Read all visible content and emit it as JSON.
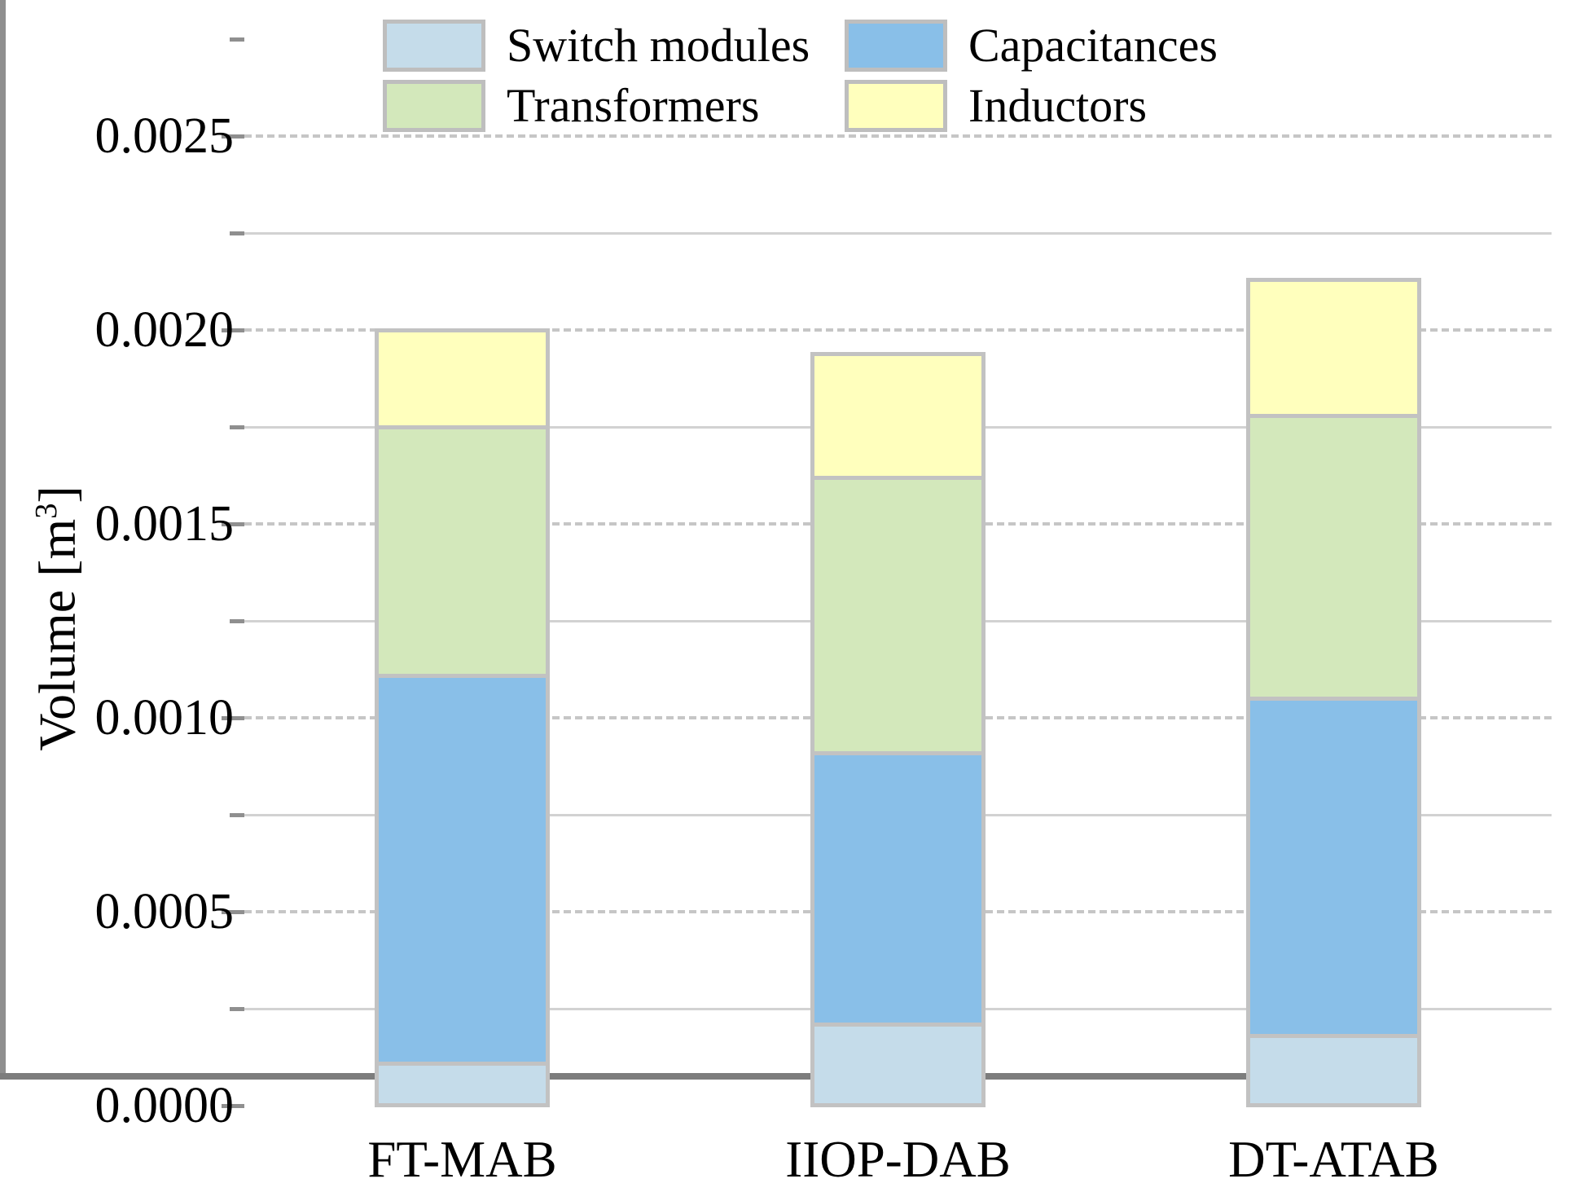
{
  "chart_data": {
    "type": "bar",
    "stacked": true,
    "title": "",
    "xlabel": "",
    "ylabel": "Volume [m³]",
    "ylabel_parts": {
      "prefix": "Volume [m",
      "superscript": "3",
      "suffix": "]"
    },
    "categories": [
      "FT-MAB",
      "IIOP-DAB",
      "DT-ATAB"
    ],
    "series": [
      {
        "name": "Switch modules",
        "color": "#c5dcea",
        "values": [
          0.00011,
          0.00021,
          0.00018
        ]
      },
      {
        "name": "Capacitances",
        "color": "#89bfe8",
        "values": [
          0.001,
          0.0007,
          0.00087
        ]
      },
      {
        "name": "Transformers",
        "color": "#d3e8bb",
        "values": [
          0.00064,
          0.00071,
          0.00073
        ]
      },
      {
        "name": "Inductors",
        "color": "#ffffbd",
        "values": [
          0.00025,
          0.00032,
          0.00035
        ]
      }
    ],
    "stack_totals": [
      0.002,
      0.00194,
      0.00213
    ],
    "ylim": [
      0,
      0.0025
    ],
    "ytick_step": 0.0005,
    "minor_tick_step": 0.00025,
    "ytick_labels": [
      "0.0000",
      "0.0005",
      "0.0010",
      "0.0015",
      "0.0020",
      "0.0025"
    ],
    "grid": "horizontal: dashed lines at major ticks, solid lines at minor ticks",
    "legend_position": "top, two columns",
    "legend_order": [
      "Switch modules",
      "Capacitances",
      "Transformers",
      "Inductors"
    ]
  },
  "colors": {
    "background": "#ffffff",
    "axis_line": "#7d7d7d",
    "spine_and_ticks": "#8f8f8f",
    "grid_major": "#c6c6c6",
    "grid_minor": "#d2d2d2",
    "bar_border": "#c2c2c2",
    "legend_swatch_border": "#bebebe",
    "text": "#000000"
  }
}
